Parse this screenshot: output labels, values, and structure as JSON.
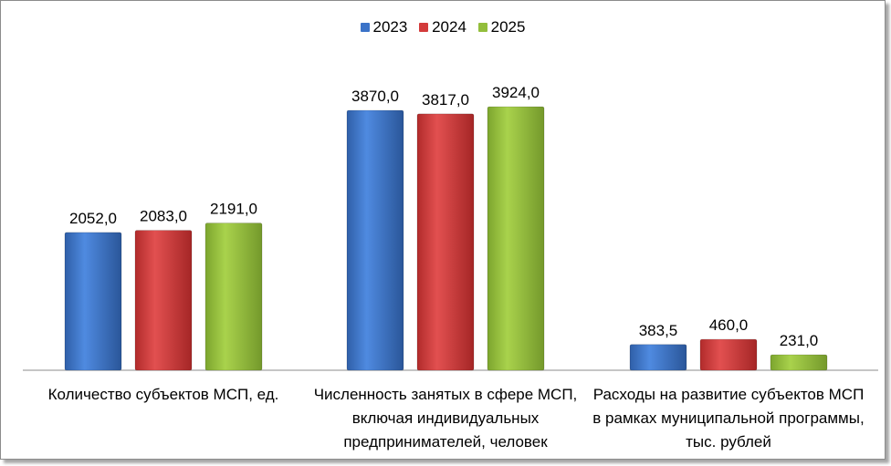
{
  "chart_data": {
    "type": "bar",
    "categories": [
      "Количество субъектов МСП, ед.",
      "Численность занятых в сфере МСП, включая индивидуальных предпринимателей, человек",
      "Расходы на развитие субъектов МСП в рамках муниципальной программы, тыс. рублей"
    ],
    "series": [
      {
        "name": "2023",
        "values": [
          2052.0,
          3870.0,
          383.5
        ],
        "labels": [
          "2052,0",
          "3870,0",
          "383,5"
        ],
        "color": "#3b73c8"
      },
      {
        "name": "2024",
        "values": [
          2083.0,
          3817.0,
          460.0
        ],
        "labels": [
          "2083,0",
          "3817,0",
          "460,0"
        ],
        "color": "#d33b3b"
      },
      {
        "name": "2025",
        "values": [
          2191.0,
          3924.0,
          231.0
        ],
        "labels": [
          "2191,0",
          "3924,0",
          "231,0"
        ],
        "color": "#93be3c"
      }
    ],
    "title": "",
    "xlabel": "",
    "ylabel": "",
    "ylim": [
      0,
      4500
    ],
    "grid": false,
    "legend_position": "top"
  }
}
